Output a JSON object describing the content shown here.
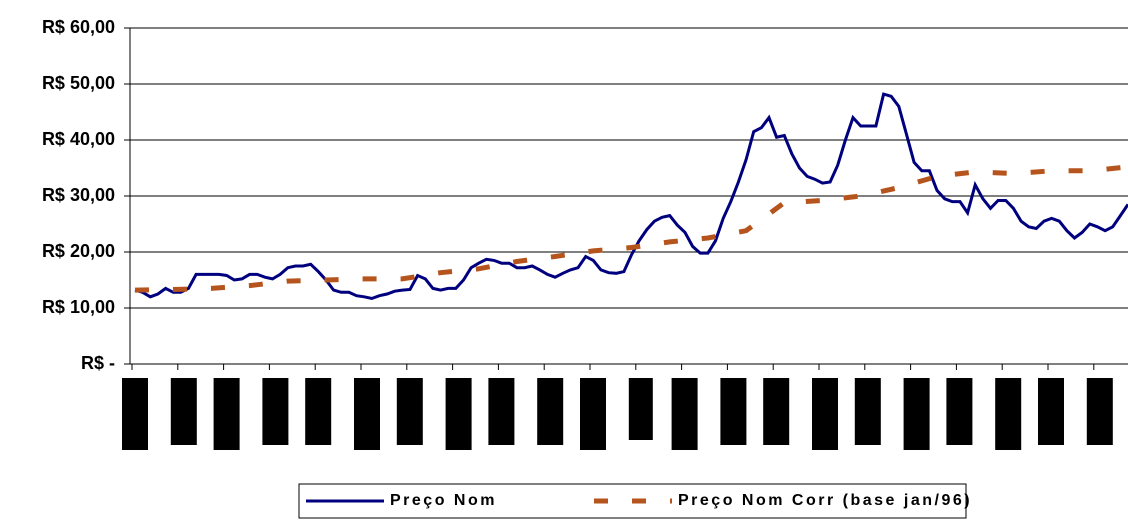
{
  "chart_data": {
    "type": "line",
    "ylim": [
      0,
      60
    ],
    "yticks": [
      {
        "value": 0,
        "label": "R$ -"
      },
      {
        "value": 10,
        "label": "R$ 10,00"
      },
      {
        "value": 20,
        "label": "R$ 20,00"
      },
      {
        "value": 30,
        "label": "R$ 30,00"
      },
      {
        "value": 40,
        "label": "R$ 40,00"
      },
      {
        "value": 50,
        "label": "R$ 50,00"
      },
      {
        "value": 60,
        "label": "R$ 60,00"
      }
    ],
    "grid": true,
    "legend": "bottom",
    "series": [
      {
        "name": "Preço Nom",
        "color": "#00007f",
        "style": "solid",
        "values": [
          13.2,
          12.8,
          12.0,
          12.5,
          13.5,
          12.8,
          12.8,
          13.5,
          16,
          16,
          16,
          16,
          15.8,
          15,
          15.2,
          16,
          16,
          15.5,
          15.2,
          16,
          17.2,
          17.5,
          17.5,
          17.8,
          16.5,
          15,
          13.2,
          12.8,
          12.8,
          12.2,
          12,
          11.7,
          12.2,
          12.5,
          13,
          13.2,
          13.3,
          15.8,
          15.2,
          13.5,
          13.2,
          13.5,
          13.5,
          15,
          17.2,
          18,
          18.7,
          18.5,
          18,
          18,
          17.2,
          17.2,
          17.5,
          16.8,
          16,
          15.5,
          16.2,
          16.8,
          17.2,
          19.2,
          18.5,
          16.8,
          16.3,
          16.2,
          16.5,
          19.5,
          22,
          24,
          25.5,
          26.2,
          26.5,
          24.8,
          23.5,
          21,
          19.8,
          19.8,
          22,
          26,
          29,
          32.5,
          36.5,
          41.5,
          42.2,
          44,
          40.5,
          40.8,
          37.5,
          35,
          33.5,
          33,
          32.3,
          32.5,
          35.5,
          40,
          44,
          42.5,
          42.5,
          42.5,
          48.2,
          47.8,
          46,
          41,
          36,
          34.5,
          34.5,
          31,
          29.5,
          29,
          29,
          27,
          32,
          29.5,
          27.8,
          29.2,
          29.2,
          27.8,
          25.5,
          24.5,
          24.2,
          25.5,
          26,
          25.5,
          23.8,
          22.5,
          23.5,
          25,
          24.5,
          23.8,
          24.5,
          26.5,
          28.5
        ]
      },
      {
        "name": "Preço Nom Corr (base jan/96)",
        "color": "#b5541c",
        "style": "dashed",
        "values": [
          13.2,
          13.3,
          13.5,
          14,
          14.8,
          15,
          15.2,
          15.2,
          16.3,
          17,
          18.3,
          19.2,
          20.2,
          20.8,
          21.8,
          22.5,
          23.8,
          28.8,
          29.2,
          30,
          31.5,
          33.5,
          34.3,
          34,
          34.5,
          34.5,
          35.2
        ]
      }
    ]
  }
}
